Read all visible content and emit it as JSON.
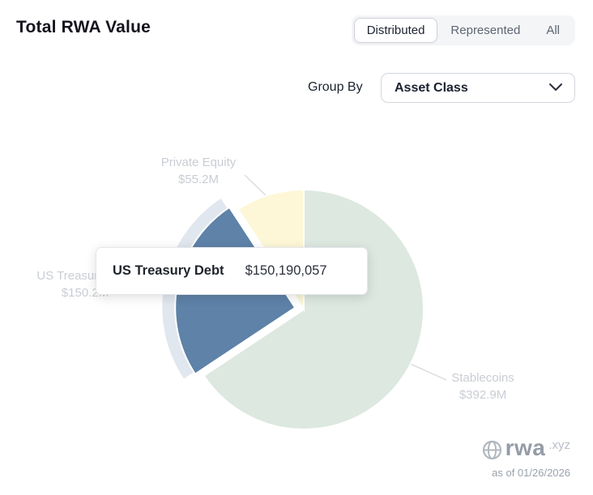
{
  "header": {
    "title": "Total RWA Value",
    "tabs": [
      {
        "label": "Distributed",
        "selected": true
      },
      {
        "label": "Represented",
        "selected": false
      },
      {
        "label": "All",
        "selected": false
      }
    ]
  },
  "controls": {
    "group_by_label": "Group By",
    "group_by_value": "Asset Class"
  },
  "chart_data": {
    "type": "pie",
    "title": "Total RWA Value",
    "start_angle_deg_from_top": 0,
    "clockwise": true,
    "slices": [
      {
        "name": "Stablecoins",
        "value": 392900000,
        "label_value": "$392.9M",
        "color": "#dce8e0",
        "selected": false
      },
      {
        "name": "US Treasury Debt",
        "value": 150190057,
        "label_value": "$150.2M",
        "color": "#5e82a8",
        "selected": true
      },
      {
        "name": "Private Equity",
        "value": 55200000,
        "label_value": "$55.2M",
        "color": "#fdf7d8",
        "selected": false
      }
    ],
    "halo_color": "#c3d0e0",
    "label_color": "#c9cdd4"
  },
  "tooltip": {
    "name": "US Treasury Debt",
    "value": "$150,190,057"
  },
  "watermark": {
    "brand": "rwa",
    "domain": ".xyz",
    "as_of": "as of 01/26/2026"
  }
}
